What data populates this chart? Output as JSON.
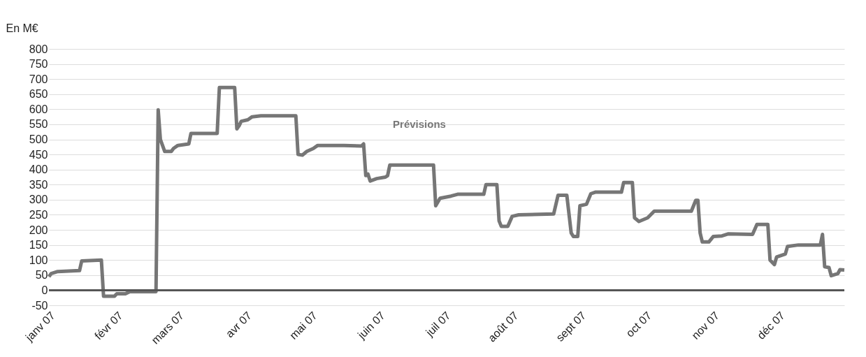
{
  "chart_data": {
    "type": "line",
    "ylabel": "En M€",
    "annotations": [
      "Prévisions"
    ],
    "x": [
      "2007-01-01",
      "2007-01-02",
      "2007-01-05",
      "2007-01-15",
      "2007-01-16",
      "2007-01-25",
      "2007-01-26",
      "2007-01-31",
      "2007-02-01",
      "2007-02-05",
      "2007-02-07",
      "2007-02-19",
      "2007-02-20",
      "2007-02-21",
      "2007-02-23",
      "2007-02-26",
      "2007-02-27",
      "2007-03-01",
      "2007-03-06",
      "2007-03-07",
      "2007-03-19",
      "2007-03-20",
      "2007-03-27",
      "2007-03-28",
      "2007-03-29",
      "2007-03-30",
      "2007-04-02",
      "2007-04-04",
      "2007-04-08",
      "2007-04-24",
      "2007-04-25",
      "2007-04-27",
      "2007-04-29",
      "2007-05-02",
      "2007-05-04",
      "2007-05-16",
      "2007-05-24",
      "2007-05-25",
      "2007-05-26",
      "2007-05-27",
      "2007-05-28",
      "2007-05-31",
      "2007-06-04",
      "2007-06-05",
      "2007-06-06",
      "2007-06-26",
      "2007-06-27",
      "2007-06-29",
      "2007-07-04",
      "2007-07-07",
      "2007-07-19",
      "2007-07-20",
      "2007-07-25",
      "2007-07-26",
      "2007-07-27",
      "2007-07-30",
      "2007-08-01",
      "2007-08-04",
      "2007-08-20",
      "2007-08-22",
      "2007-08-26",
      "2007-08-28",
      "2007-08-29",
      "2007-08-31",
      "2007-09-01",
      "2007-09-04",
      "2007-09-06",
      "2007-09-08",
      "2007-09-20",
      "2007-09-21",
      "2007-09-25",
      "2007-09-26",
      "2007-09-28",
      "2007-10-02",
      "2007-10-05",
      "2007-10-22",
      "2007-10-24",
      "2007-10-25",
      "2007-10-26",
      "2007-10-27",
      "2007-10-30",
      "2007-11-01",
      "2007-11-05",
      "2007-11-08",
      "2007-11-19",
      "2007-11-21",
      "2007-11-26",
      "2007-11-27",
      "2007-11-29",
      "2007-11-30",
      "2007-12-04",
      "2007-12-05",
      "2007-12-10",
      "2007-12-20",
      "2007-12-21",
      "2007-12-22",
      "2007-12-24",
      "2007-12-25",
      "2007-12-28",
      "2007-12-29",
      "2007-12-31"
    ],
    "series": [
      {
        "color": "#767676",
        "values": [
          45,
          55,
          62,
          65,
          97,
          100,
          -20,
          -20,
          -12,
          -12,
          -5,
          -5,
          598,
          500,
          460,
          460,
          470,
          480,
          485,
          520,
          520,
          672,
          672,
          535,
          545,
          560,
          565,
          575,
          578,
          578,
          450,
          448,
          460,
          470,
          480,
          480,
          478,
          485,
          380,
          385,
          362,
          370,
          375,
          380,
          415,
          415,
          280,
          305,
          312,
          318,
          318,
          350,
          350,
          230,
          212,
          212,
          245,
          250,
          253,
          315,
          315,
          190,
          178,
          178,
          280,
          285,
          320,
          325,
          325,
          357,
          357,
          240,
          228,
          240,
          262,
          262,
          298,
          298,
          190,
          160,
          160,
          178,
          180,
          187,
          185,
          218,
          218,
          100,
          85,
          110,
          120,
          145,
          150,
          150,
          185,
          78,
          75,
          48,
          55,
          68,
          67
        ]
      }
    ],
    "xlim": [
      "2007-01-01",
      "2007-12-31"
    ],
    "xticks": [
      {
        "value": "2007-01-01",
        "label": "janv 07"
      },
      {
        "value": "2007-02-01",
        "label": "févr 07"
      },
      {
        "value": "2007-03-01",
        "label": "mars 07"
      },
      {
        "value": "2007-04-01",
        "label": "avr 07"
      },
      {
        "value": "2007-05-01",
        "label": "mai 07"
      },
      {
        "value": "2007-06-01",
        "label": "juin 07"
      },
      {
        "value": "2007-07-01",
        "label": "juil 07"
      },
      {
        "value": "2007-08-01",
        "label": "août 07"
      },
      {
        "value": "2007-09-01",
        "label": "sept 07"
      },
      {
        "value": "2007-10-01",
        "label": "oct 07"
      },
      {
        "value": "2007-11-01",
        "label": "nov 07"
      },
      {
        "value": "2007-12-01",
        "label": "déc 07"
      }
    ],
    "ylim": [
      -50,
      800
    ],
    "yticks": [
      -50,
      0,
      50,
      100,
      150,
      200,
      250,
      300,
      350,
      400,
      450,
      500,
      550,
      600,
      650,
      700,
      750,
      800
    ],
    "ref_lines": [
      {
        "axis": "y",
        "value": 0,
        "color": "#555555"
      }
    ],
    "grid": "y",
    "marker": "none",
    "line_style": "solid"
  }
}
